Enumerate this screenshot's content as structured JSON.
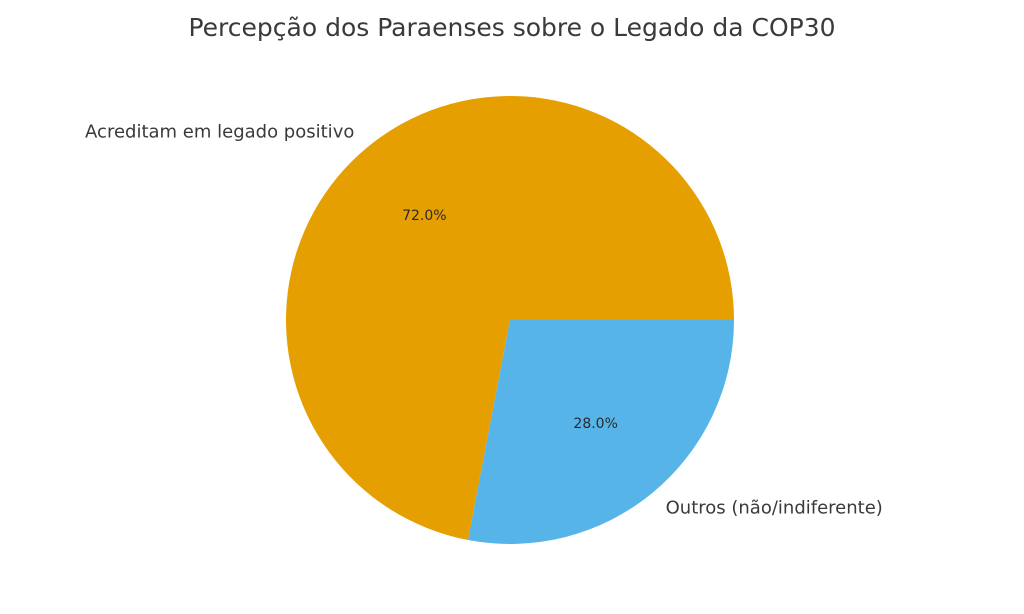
{
  "chart_data": {
    "type": "pie",
    "title": "Percepção dos Paraenses sobre o Legado da COP30",
    "labels": [
      "Acreditam em legado positivo",
      "Outros (não/indiferente)"
    ],
    "values": [
      72.0,
      28.0
    ],
    "pct_labels": [
      "72.0%",
      "28.0%"
    ],
    "colors": [
      "#E69F00",
      "#56B4E9"
    ],
    "start_angle": 0,
    "direction": "counterclockwise",
    "legend": "none",
    "background": "#ffffff",
    "text_color": "#3a3a3a"
  }
}
